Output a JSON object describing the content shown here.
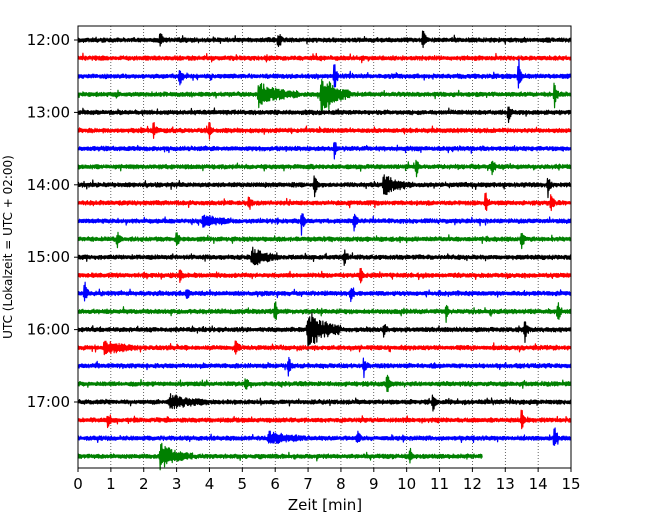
{
  "chart_data": {
    "type": "line",
    "xlabel": "Zeit  [min]",
    "ylabel": "UTC (Lokalzeit = UTC + 02:00)",
    "xlim": [
      0,
      15
    ],
    "x_ticks": [
      "0",
      "1",
      "2",
      "3",
      "4",
      "5",
      "6",
      "7",
      "8",
      "9",
      "10",
      "11",
      "12",
      "13",
      "14",
      "15"
    ],
    "y_ticks": [
      "12:00",
      "13:00",
      "14:00",
      "15:00",
      "16:00",
      "17:00"
    ],
    "grid": "vertical dotted at each minute",
    "colors": [
      "#000000",
      "#ff0000",
      "#0000ff",
      "#008000"
    ],
    "series": [
      {
        "start": "12:00",
        "color": "black"
      },
      {
        "start": "12:15",
        "color": "red"
      },
      {
        "start": "12:30",
        "color": "blue"
      },
      {
        "start": "12:45",
        "color": "green"
      },
      {
        "start": "13:00",
        "color": "black"
      },
      {
        "start": "13:15",
        "color": "red"
      },
      {
        "start": "13:30",
        "color": "blue"
      },
      {
        "start": "13:45",
        "color": "green"
      },
      {
        "start": "14:00",
        "color": "black"
      },
      {
        "start": "14:15",
        "color": "red"
      },
      {
        "start": "14:30",
        "color": "blue"
      },
      {
        "start": "14:45",
        "color": "green"
      },
      {
        "start": "15:00",
        "color": "black"
      },
      {
        "start": "15:15",
        "color": "red"
      },
      {
        "start": "15:30",
        "color": "blue"
      },
      {
        "start": "15:45",
        "color": "green"
      },
      {
        "start": "16:00",
        "color": "black"
      },
      {
        "start": "16:15",
        "color": "red"
      },
      {
        "start": "16:30",
        "color": "blue"
      },
      {
        "start": "16:45",
        "color": "green"
      },
      {
        "start": "17:00",
        "color": "black"
      },
      {
        "start": "17:15",
        "color": "red"
      },
      {
        "start": "17:30",
        "color": "blue"
      },
      {
        "start": "17:45",
        "color": "green",
        "end_min": 12.3
      }
    ],
    "events": [
      {
        "row": 0,
        "t": 2.5,
        "amp": 0.5
      },
      {
        "row": 0,
        "t": 6.1,
        "amp": 0.45
      },
      {
        "row": 0,
        "t": 10.5,
        "amp": 0.5
      },
      {
        "row": 2,
        "t": 7.8,
        "amp": 0.8
      },
      {
        "row": 2,
        "t": 13.4,
        "amp": 0.9
      },
      {
        "row": 2,
        "t": 3.1,
        "amp": 0.4
      },
      {
        "row": 3,
        "t": 7.4,
        "amp": 0.9,
        "dur": 0.9
      },
      {
        "row": 3,
        "t": 5.5,
        "amp": 0.5,
        "dur": 1.2
      },
      {
        "row": 3,
        "t": 14.5,
        "amp": 0.6
      },
      {
        "row": 4,
        "t": 13.1,
        "amp": 0.5
      },
      {
        "row": 5,
        "t": 4.0,
        "amp": 0.5
      },
      {
        "row": 5,
        "t": 2.3,
        "amp": 0.4
      },
      {
        "row": 6,
        "t": 7.8,
        "amp": 0.4
      },
      {
        "row": 7,
        "t": 10.3,
        "amp": 0.4
      },
      {
        "row": 7,
        "t": 12.6,
        "amp": 0.35
      },
      {
        "row": 8,
        "t": 7.2,
        "amp": 0.5
      },
      {
        "row": 8,
        "t": 9.3,
        "amp": 0.4,
        "dur": 0.9
      },
      {
        "row": 8,
        "t": 14.3,
        "amp": 0.5
      },
      {
        "row": 9,
        "t": 12.4,
        "amp": 0.55
      },
      {
        "row": 9,
        "t": 14.4,
        "amp": 0.45
      },
      {
        "row": 9,
        "t": 5.2,
        "amp": 0.35
      },
      {
        "row": 10,
        "t": 6.8,
        "amp": 0.6
      },
      {
        "row": 10,
        "t": 8.4,
        "amp": 0.45
      },
      {
        "row": 10,
        "t": 3.8,
        "amp": 0.3,
        "dur": 0.8
      },
      {
        "row": 11,
        "t": 3.0,
        "amp": 0.4
      },
      {
        "row": 11,
        "t": 13.5,
        "amp": 0.45
      },
      {
        "row": 11,
        "t": 1.2,
        "amp": 0.35
      },
      {
        "row": 12,
        "t": 5.3,
        "amp": 0.4,
        "dur": 0.8
      },
      {
        "row": 12,
        "t": 8.1,
        "amp": 0.35
      },
      {
        "row": 13,
        "t": 8.6,
        "amp": 0.35
      },
      {
        "row": 13,
        "t": 3.1,
        "amp": 0.3
      },
      {
        "row": 14,
        "t": 0.2,
        "amp": 0.6
      },
      {
        "row": 14,
        "t": 8.3,
        "amp": 0.35
      },
      {
        "row": 14,
        "t": 3.3,
        "amp": 0.3
      },
      {
        "row": 15,
        "t": 6.0,
        "amp": 0.5
      },
      {
        "row": 15,
        "t": 14.6,
        "amp": 0.5
      },
      {
        "row": 15,
        "t": 11.2,
        "amp": 0.4
      },
      {
        "row": 16,
        "t": 7.0,
        "amp": 0.85,
        "dur": 1.0
      },
      {
        "row": 16,
        "t": 13.6,
        "amp": 0.5
      },
      {
        "row": 16,
        "t": 9.3,
        "amp": 0.35
      },
      {
        "row": 17,
        "t": 4.8,
        "amp": 0.4
      },
      {
        "row": 17,
        "t": 0.8,
        "amp": 0.3,
        "dur": 1.0
      },
      {
        "row": 18,
        "t": 6.4,
        "amp": 0.5
      },
      {
        "row": 18,
        "t": 8.7,
        "amp": 0.45
      },
      {
        "row": 19,
        "t": 9.4,
        "amp": 0.55
      },
      {
        "row": 19,
        "t": 5.1,
        "amp": 0.35
      },
      {
        "row": 20,
        "t": 10.8,
        "amp": 0.5
      },
      {
        "row": 20,
        "t": 2.8,
        "amp": 0.3,
        "dur": 1.2
      },
      {
        "row": 21,
        "t": 13.5,
        "amp": 0.5
      },
      {
        "row": 21,
        "t": 0.9,
        "amp": 0.35
      },
      {
        "row": 22,
        "t": 14.5,
        "amp": 0.7
      },
      {
        "row": 22,
        "t": 5.8,
        "amp": 0.3,
        "dur": 1.0
      },
      {
        "row": 22,
        "t": 8.5,
        "amp": 0.35
      },
      {
        "row": 23,
        "t": 2.5,
        "amp": 0.55,
        "dur": 1.0
      },
      {
        "row": 23,
        "t": 10.1,
        "amp": 0.3
      }
    ]
  }
}
